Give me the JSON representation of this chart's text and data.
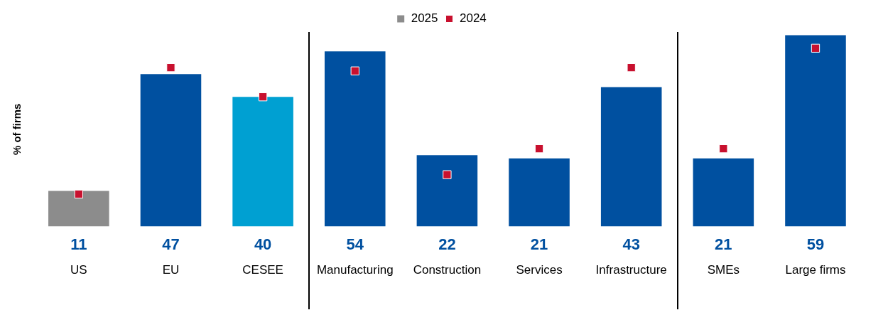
{
  "chart_data": {
    "type": "bar",
    "ylabel": "% of firms",
    "legend": "top",
    "categories": [
      "US",
      "EU",
      "CESEE",
      "Manufacturing",
      "Construction",
      "Services",
      "Infrastructure",
      "SMEs",
      "Large firms"
    ],
    "series": [
      {
        "name": "2025",
        "color": "#0050a0",
        "colors": [
          "#8c8c8c",
          "#0050a0",
          "#00a0d2",
          "#0050a0",
          "#0050a0",
          "#0050a0",
          "#0050a0",
          "#0050a0",
          "#0050a0"
        ],
        "values": [
          11,
          47,
          40,
          54,
          22,
          21,
          43,
          21,
          59
        ],
        "value_labels": [
          "11",
          "47",
          "40",
          "54",
          "22",
          "21",
          "43",
          "21",
          "59"
        ]
      },
      {
        "name": "2024",
        "type": "scatter",
        "color": "#c8102e",
        "x": [
          "US",
          "EU",
          "CESEE",
          "Manufacturing",
          "Construction",
          "Services",
          "Infrastructure",
          "SMEs",
          "Large firms"
        ],
        "values": [
          10,
          49,
          40,
          48,
          16,
          24,
          49,
          24,
          55
        ]
      }
    ]
  }
}
